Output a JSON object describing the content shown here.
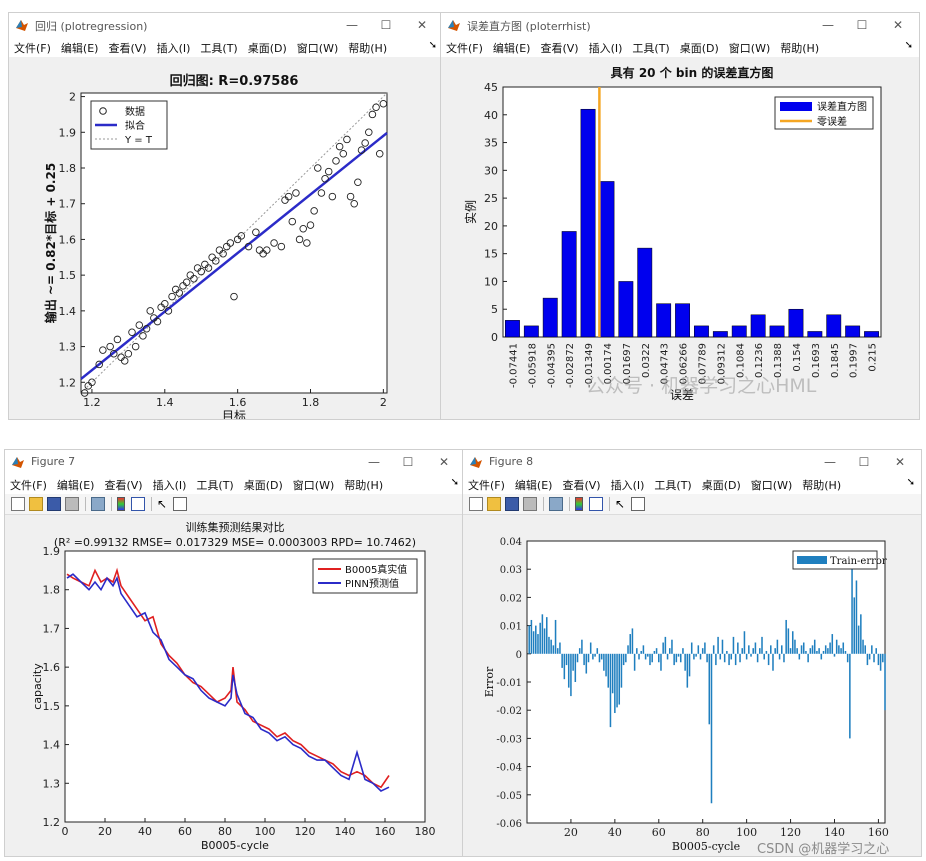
{
  "windows": {
    "regression": {
      "title": "回归 (plotregression)",
      "menus": [
        "文件(F)",
        "编辑(E)",
        "查看(V)",
        "插入(I)",
        "工具(T)",
        "桌面(D)",
        "窗口(W)",
        "帮助(H)"
      ],
      "controls": {
        "minimize": "—",
        "maximize": "☐",
        "close": "✕"
      }
    },
    "errhist": {
      "title": "误差直方图 (ploterrhist)",
      "menus": [
        "文件(F)",
        "编辑(E)",
        "查看(V)",
        "插入(I)",
        "工具(T)",
        "桌面(D)",
        "窗口(W)",
        "帮助(H)"
      ],
      "controls": {
        "minimize": "—",
        "maximize": "☐",
        "close": "✕"
      }
    },
    "fig7": {
      "title": "Figure 7",
      "menus": [
        "文件(F)",
        "编辑(E)",
        "查看(V)",
        "插入(I)",
        "工具(T)",
        "桌面(D)",
        "窗口(W)",
        "帮助(H)"
      ],
      "controls": {
        "minimize": "—",
        "maximize": "☐",
        "close": "✕"
      }
    },
    "fig8": {
      "title": "Figure 8",
      "menus": [
        "文件(F)",
        "编辑(E)",
        "查看(V)",
        "插入(I)",
        "工具(T)",
        "桌面(D)",
        "窗口(W)",
        "帮助(H)"
      ],
      "controls": {
        "minimize": "—",
        "maximize": "☐",
        "close": "✕"
      }
    }
  },
  "toolbar_icons": [
    "new-file-icon",
    "open-folder-icon",
    "save-icon",
    "print-icon",
    "link-plot-icon",
    "colorbar-icon",
    "legend-icon",
    "pointer-icon",
    "property-editor-icon"
  ],
  "colors": {
    "blue": "#0000ee",
    "orange": "#f5a623",
    "red": "#e02020",
    "navy": "#2b2bc8",
    "teal": "#1f7fbf"
  },
  "watermark": "公众号 · 机器学习之心HML",
  "csdn_watermark": "CSDN @机器学习之心",
  "chart_data": [
    {
      "type": "scatter",
      "title": "回归图: R=0.97586",
      "xlabel": "目标",
      "ylabel": "输出 ~= 0.82*目标 + 0.25",
      "xlim": [
        1.17,
        2.01
      ],
      "ylim": [
        1.17,
        2.01
      ],
      "xticks": [
        "1.2",
        "1.4",
        "1.6",
        "1.8",
        "2"
      ],
      "yticks": [
        "1.2",
        "1.3",
        "1.4",
        "1.5",
        "1.6",
        "1.7",
        "1.8",
        "1.9",
        "2"
      ],
      "legend": {
        "placement": "top-left",
        "entries": [
          "数据",
          "拟合",
          "Y = T"
        ]
      },
      "fit": {
        "slope": 0.82,
        "intercept": 0.25
      },
      "points": [
        [
          1.18,
          1.17
        ],
        [
          1.19,
          1.19
        ],
        [
          1.2,
          1.2
        ],
        [
          1.22,
          1.25
        ],
        [
          1.23,
          1.29
        ],
        [
          1.25,
          1.3
        ],
        [
          1.26,
          1.28
        ],
        [
          1.27,
          1.32
        ],
        [
          1.28,
          1.27
        ],
        [
          1.29,
          1.26
        ],
        [
          1.3,
          1.28
        ],
        [
          1.31,
          1.34
        ],
        [
          1.32,
          1.3
        ],
        [
          1.33,
          1.36
        ],
        [
          1.34,
          1.33
        ],
        [
          1.35,
          1.35
        ],
        [
          1.36,
          1.4
        ],
        [
          1.37,
          1.38
        ],
        [
          1.38,
          1.37
        ],
        [
          1.39,
          1.41
        ],
        [
          1.4,
          1.42
        ],
        [
          1.41,
          1.4
        ],
        [
          1.42,
          1.44
        ],
        [
          1.43,
          1.46
        ],
        [
          1.44,
          1.45
        ],
        [
          1.45,
          1.47
        ],
        [
          1.46,
          1.48
        ],
        [
          1.47,
          1.5
        ],
        [
          1.48,
          1.49
        ],
        [
          1.49,
          1.52
        ],
        [
          1.5,
          1.51
        ],
        [
          1.51,
          1.53
        ],
        [
          1.52,
          1.52
        ],
        [
          1.53,
          1.55
        ],
        [
          1.54,
          1.54
        ],
        [
          1.55,
          1.57
        ],
        [
          1.56,
          1.56
        ],
        [
          1.57,
          1.58
        ],
        [
          1.58,
          1.59
        ],
        [
          1.59,
          1.44
        ],
        [
          1.6,
          1.6
        ],
        [
          1.61,
          1.61
        ],
        [
          1.63,
          1.58
        ],
        [
          1.65,
          1.62
        ],
        [
          1.66,
          1.57
        ],
        [
          1.67,
          1.56
        ],
        [
          1.68,
          1.57
        ],
        [
          1.7,
          1.59
        ],
        [
          1.72,
          1.58
        ],
        [
          1.73,
          1.71
        ],
        [
          1.74,
          1.72
        ],
        [
          1.75,
          1.65
        ],
        [
          1.76,
          1.73
        ],
        [
          1.77,
          1.6
        ],
        [
          1.78,
          1.63
        ],
        [
          1.79,
          1.59
        ],
        [
          1.8,
          1.64
        ],
        [
          1.81,
          1.68
        ],
        [
          1.82,
          1.8
        ],
        [
          1.83,
          1.73
        ],
        [
          1.84,
          1.77
        ],
        [
          1.85,
          1.79
        ],
        [
          1.86,
          1.72
        ],
        [
          1.87,
          1.82
        ],
        [
          1.88,
          1.86
        ],
        [
          1.89,
          1.84
        ],
        [
          1.9,
          1.88
        ],
        [
          1.91,
          1.72
        ],
        [
          1.92,
          1.7
        ],
        [
          1.93,
          1.76
        ],
        [
          1.94,
          1.85
        ],
        [
          1.95,
          1.87
        ],
        [
          1.96,
          1.9
        ],
        [
          1.97,
          1.95
        ],
        [
          1.98,
          1.97
        ],
        [
          1.99,
          1.84
        ],
        [
          2.0,
          1.98
        ]
      ]
    },
    {
      "type": "bar",
      "title": "具有 20 个 bin 的误差直方图",
      "xlabel": "误差",
      "ylabel": "实例",
      "ylim": [
        0,
        45
      ],
      "yticks": [
        "0",
        "5",
        "10",
        "15",
        "20",
        "25",
        "30",
        "35",
        "40",
        "45"
      ],
      "categories": [
        "-0.07441",
        "-0.05918",
        "-0.04395",
        "-0.02872",
        "-0.01349",
        "0.00174",
        "0.01697",
        "0.0322",
        "0.04743",
        "0.06266",
        "0.07789",
        "0.09312",
        "0.1084",
        "0.1236",
        "0.1388",
        "0.154",
        "0.1693",
        "0.1845",
        "0.1997",
        "0.215"
      ],
      "values": [
        3,
        2,
        7,
        19,
        41,
        28,
        10,
        16,
        6,
        6,
        2,
        1,
        2,
        4,
        2,
        5,
        1,
        4,
        2,
        1
      ],
      "zero_error_bin": 5,
      "legend": {
        "placement": "top-right",
        "entries": [
          "误差直方图",
          "零误差"
        ]
      }
    },
    {
      "type": "line",
      "title": "训练集预测结果对比",
      "subtitle": "(R² =0.99132 RMSE= 0.017329 MSE= 0.0003003 RPD= 10.7462)",
      "xlabel": "B0005-cycle",
      "ylabel": "capacity",
      "xlim": [
        0,
        180
      ],
      "ylim": [
        1.2,
        1.9
      ],
      "xticks": [
        "0",
        "20",
        "40",
        "60",
        "80",
        "100",
        "120",
        "140",
        "160",
        "180"
      ],
      "yticks": [
        "1.2",
        "1.3",
        "1.4",
        "1.5",
        "1.6",
        "1.7",
        "1.8",
        "1.9"
      ],
      "legend": {
        "placement": "top-right",
        "entries": [
          "B0005真实值",
          "PINN预测值"
        ]
      },
      "series": [
        {
          "name": "B0005真实值",
          "x": [
            1,
            4,
            8,
            12,
            15,
            18,
            21,
            24,
            26,
            28,
            32,
            36,
            40,
            44,
            48,
            52,
            56,
            60,
            64,
            68,
            72,
            76,
            80,
            83,
            84,
            86,
            90,
            94,
            98,
            102,
            106,
            110,
            114,
            118,
            122,
            126,
            130,
            134,
            138,
            142,
            146,
            150,
            154,
            158,
            162
          ],
          "y": [
            1.84,
            1.83,
            1.82,
            1.81,
            1.85,
            1.82,
            1.83,
            1.82,
            1.85,
            1.81,
            1.78,
            1.75,
            1.72,
            1.73,
            1.66,
            1.63,
            1.61,
            1.58,
            1.56,
            1.55,
            1.53,
            1.51,
            1.52,
            1.54,
            1.6,
            1.51,
            1.49,
            1.46,
            1.45,
            1.44,
            1.42,
            1.43,
            1.41,
            1.4,
            1.38,
            1.37,
            1.36,
            1.35,
            1.33,
            1.32,
            1.33,
            1.32,
            1.3,
            1.29,
            1.32
          ]
        },
        {
          "name": "PINN预测值",
          "x": [
            1,
            4,
            8,
            12,
            15,
            18,
            21,
            24,
            26,
            28,
            32,
            36,
            40,
            44,
            48,
            52,
            56,
            60,
            64,
            68,
            72,
            76,
            80,
            83,
            84,
            86,
            90,
            94,
            98,
            102,
            106,
            110,
            114,
            118,
            122,
            126,
            130,
            134,
            138,
            142,
            146,
            150,
            154,
            158,
            162
          ],
          "y": [
            1.83,
            1.84,
            1.82,
            1.8,
            1.82,
            1.8,
            1.83,
            1.81,
            1.83,
            1.79,
            1.76,
            1.73,
            1.74,
            1.69,
            1.67,
            1.62,
            1.6,
            1.58,
            1.57,
            1.54,
            1.52,
            1.51,
            1.5,
            1.52,
            1.58,
            1.53,
            1.48,
            1.47,
            1.44,
            1.43,
            1.41,
            1.42,
            1.4,
            1.39,
            1.37,
            1.36,
            1.36,
            1.34,
            1.32,
            1.31,
            1.38,
            1.31,
            1.3,
            1.28,
            1.29
          ]
        }
      ]
    },
    {
      "type": "bar",
      "xlabel": "B0005-cycle",
      "ylabel": "Error",
      "xlim": [
        0,
        163
      ],
      "ylim": [
        -0.06,
        0.04
      ],
      "xticks": [
        "20",
        "40",
        "60",
        "80",
        "100",
        "120",
        "140",
        "160"
      ],
      "yticks": [
        "0.04",
        "0.03",
        "0.02",
        "0.01",
        "0",
        "-0.01",
        "-0.02",
        "-0.03",
        "-0.04",
        "-0.05",
        "-0.06"
      ],
      "legend": {
        "placement": "top-right",
        "entries": [
          "Train-error"
        ]
      },
      "values": [
        0.01,
        0.012,
        0.008,
        0.01,
        0.007,
        0.011,
        0.014,
        0.009,
        0.013,
        0.006,
        0.005,
        0.003,
        0.012,
        0.002,
        0.004,
        -0.005,
        -0.009,
        -0.004,
        -0.012,
        -0.015,
        -0.006,
        -0.01,
        -0.003,
        0.002,
        0.005,
        -0.004,
        -0.007,
        -0.003,
        0.004,
        -0.002,
        -0.001,
        0.002,
        -0.003,
        -0.002,
        -0.006,
        -0.008,
        -0.012,
        -0.026,
        -0.014,
        -0.021,
        -0.019,
        -0.018,
        -0.012,
        -0.004,
        -0.003,
        0.003,
        0.007,
        0.009,
        -0.006,
        0.002,
        -0.002,
        0.001,
        0.003,
        -0.002,
        -0.001,
        -0.004,
        -0.003,
        0.001,
        0.002,
        -0.003,
        -0.006,
        0.004,
        0.006,
        -0.002,
        0.002,
        0.005,
        -0.004,
        -0.003,
        -0.001,
        -0.003,
        0.002,
        -0.006,
        -0.012,
        -0.008,
        0.004,
        -0.002,
        -0.001,
        0.003,
        -0.002,
        0.002,
        0.004,
        -0.003,
        -0.025,
        -0.053,
        0.003,
        -0.004,
        0.006,
        -0.002,
        0.005,
        -0.003,
        0.001,
        -0.004,
        -0.002,
        0.006,
        -0.004,
        0.004,
        -0.003,
        0.002,
        0.008,
        -0.002,
        0.003,
        -0.001,
        0.002,
        0.004,
        -0.003,
        0.002,
        0.006,
        -0.002,
        0.001,
        -0.004,
        0.003,
        -0.006,
        0.002,
        0.005,
        -0.002,
        0.003,
        -0.003,
        0.012,
        0.009,
        0.002,
        0.008,
        0.005,
        0.002,
        -0.002,
        0.003,
        0.004,
        0.001,
        -0.003,
        0.002,
        0.003,
        0.005,
        0.001,
        0.002,
        -0.002,
        0.001,
        0.003,
        0.002,
        0.004,
        0.007,
        -0.001,
        0.005,
        0.003,
        0.002,
        0.004,
        0.001,
        -0.003,
        -0.03,
        0.032,
        0.02,
        0.026,
        0.01,
        0.014,
        0.005,
        0.003,
        -0.004,
        -0.002,
        0.003,
        -0.003,
        0.002,
        -0.004,
        -0.006,
        -0.003,
        -0.02
      ]
    }
  ]
}
